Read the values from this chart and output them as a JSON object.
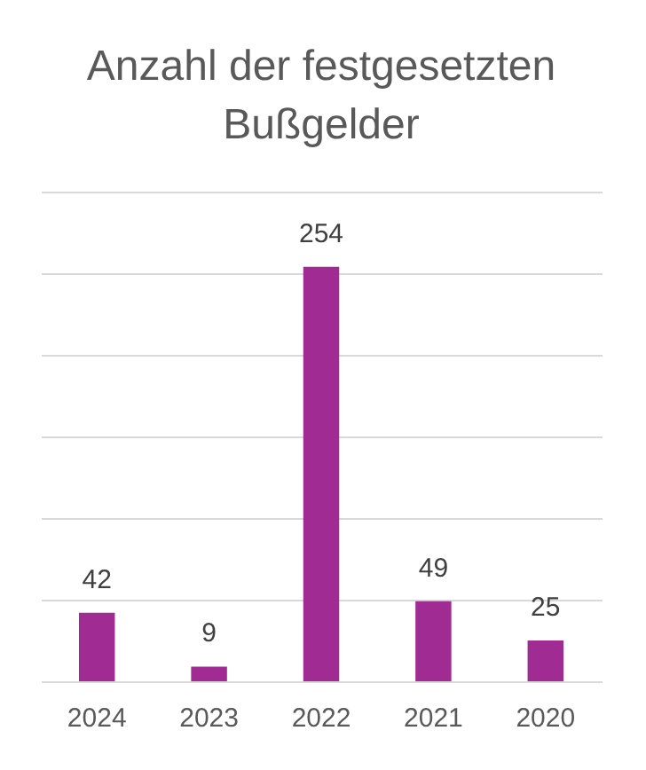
{
  "chart_data": {
    "type": "bar",
    "title": "Anzahl der festgesetzten\nBußgelder",
    "categories": [
      "2024",
      "2023",
      "2022",
      "2021",
      "2020"
    ],
    "values": [
      42,
      9,
      254,
      49,
      25
    ],
    "color": "#a02b93",
    "ylim": [
      0,
      300
    ],
    "yticks": [
      {
        "value": 0,
        "label": null
      },
      {
        "value": 50,
        "label": null
      },
      {
        "value": 100,
        "label": null
      },
      {
        "value": 150,
        "label": null
      },
      {
        "value": 200,
        "label": null
      },
      {
        "value": 250,
        "label": null
      },
      {
        "value": 300,
        "label": null
      }
    ],
    "grid": "y",
    "data_labels": true,
    "tick_labels": "x"
  }
}
